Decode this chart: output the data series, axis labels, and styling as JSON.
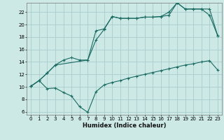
{
  "background_color": "#cce9e5",
  "grid_color": "#aacccc",
  "line_color": "#1a6b62",
  "xlabel": "Humidex (Indice chaleur)",
  "xlim": [
    -0.5,
    23.5
  ],
  "ylim": [
    5.5,
    23.5
  ],
  "xticks": [
    0,
    1,
    2,
    3,
    4,
    5,
    6,
    7,
    8,
    9,
    10,
    11,
    12,
    13,
    14,
    15,
    16,
    17,
    18,
    19,
    20,
    21,
    22,
    23
  ],
  "yticks": [
    6,
    8,
    10,
    12,
    14,
    16,
    18,
    20,
    22
  ],
  "line1_x": [
    0,
    1,
    2,
    3,
    4,
    5,
    6,
    7,
    8,
    9,
    10,
    11,
    12,
    13,
    14,
    15,
    16,
    17,
    18,
    19,
    20,
    21,
    22,
    23
  ],
  "line1_y": [
    10.1,
    11.0,
    9.7,
    9.8,
    9.1,
    8.5,
    6.8,
    5.9,
    9.2,
    10.3,
    10.7,
    11.0,
    11.4,
    11.7,
    12.0,
    12.3,
    12.6,
    12.9,
    13.2,
    13.5,
    13.7,
    14.0,
    14.2,
    12.7
  ],
  "line2_x": [
    0,
    1,
    2,
    3,
    7,
    8,
    9,
    10,
    11,
    12,
    13,
    14,
    15,
    16,
    17,
    18,
    19,
    20,
    21,
    22,
    23
  ],
  "line2_y": [
    10.1,
    11.0,
    12.2,
    13.5,
    14.3,
    17.5,
    19.2,
    21.3,
    21.0,
    21.0,
    21.0,
    21.2,
    21.2,
    21.3,
    21.5,
    23.5,
    22.5,
    22.5,
    22.5,
    21.5,
    18.2
  ],
  "line3_x": [
    0,
    1,
    2,
    3,
    4,
    5,
    6,
    7,
    8,
    9,
    10,
    11,
    12,
    13,
    14,
    15,
    16,
    17,
    18,
    19,
    20,
    21,
    22,
    23
  ],
  "line3_y": [
    10.1,
    11.0,
    12.2,
    13.5,
    14.3,
    14.7,
    14.3,
    14.3,
    19.0,
    19.3,
    21.3,
    21.0,
    21.0,
    21.0,
    21.2,
    21.2,
    21.3,
    22.0,
    23.5,
    22.5,
    22.5,
    22.5,
    22.5,
    18.2
  ]
}
